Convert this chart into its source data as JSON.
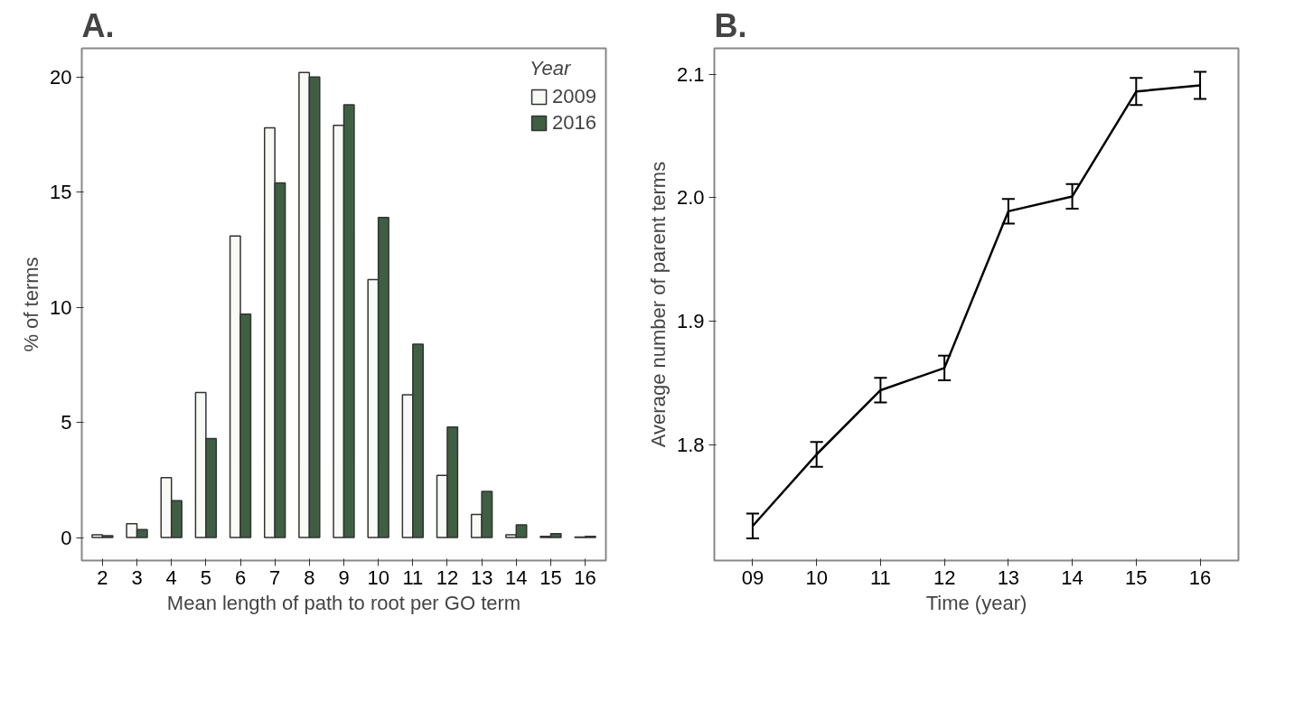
{
  "chart_data": [
    {
      "type": "bar",
      "title": "A.",
      "xlabel": "Mean length of path to root per GO term",
      "ylabel": "% of terms",
      "legend_title": "Year",
      "legend": "top right",
      "grid": false,
      "categories": [
        "2",
        "3",
        "4",
        "5",
        "6",
        "7",
        "8",
        "9",
        "10",
        "11",
        "12",
        "13",
        "14",
        "15",
        "16"
      ],
      "series": [
        {
          "name": "2009",
          "color": "#f8faf5",
          "values": [
            0.12,
            0.6,
            2.6,
            6.3,
            13.1,
            17.8,
            20.2,
            17.9,
            11.2,
            6.2,
            2.7,
            1.0,
            0.12,
            0.05,
            0.02
          ]
        },
        {
          "name": "2016",
          "color": "#3f5f42",
          "values": [
            0.08,
            0.34,
            1.6,
            4.3,
            9.7,
            15.4,
            20.0,
            18.8,
            13.9,
            8.4,
            4.8,
            2.0,
            0.55,
            0.17,
            0.05
          ]
        }
      ],
      "ylim": [
        -1,
        21.25
      ],
      "yticks": [
        0,
        5,
        10,
        15,
        20
      ]
    },
    {
      "type": "line",
      "title": "B.",
      "xlabel": "Time (year)",
      "ylabel": "Average number of parent terms",
      "grid": false,
      "marker": "none",
      "line_style": "solid",
      "categories": [
        "09",
        "10",
        "11",
        "12",
        "13",
        "14",
        "15",
        "16"
      ],
      "series": [
        {
          "color": "#000000",
          "values": [
            1.734,
            1.792,
            1.844,
            1.862,
            1.989,
            2.001,
            2.086,
            2.091
          ],
          "errors": [
            0.01,
            0.01,
            0.01,
            0.01,
            0.01,
            0.01,
            0.011,
            0.011
          ]
        }
      ],
      "ylim": [
        1.706,
        2.121
      ],
      "yticks": [
        1.8,
        1.9,
        {
          "value": 2.0,
          "label": "2.0"
        },
        2.1
      ]
    }
  ]
}
